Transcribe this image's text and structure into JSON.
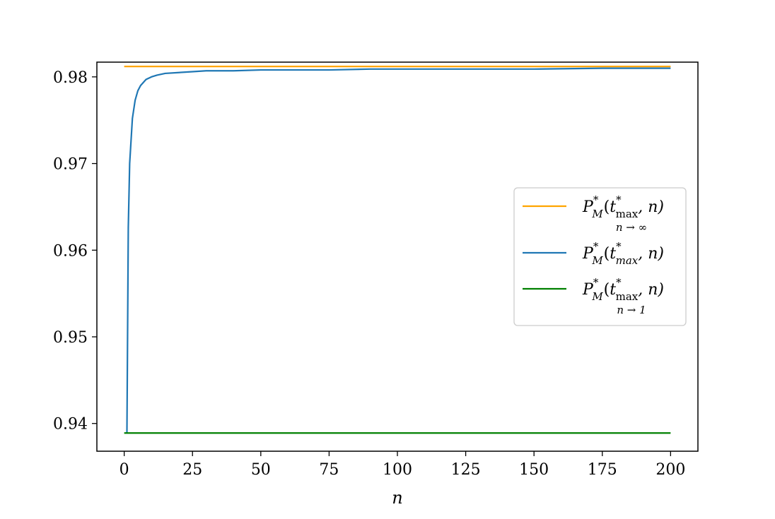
{
  "chart_data": {
    "type": "line",
    "title": "",
    "xlabel": "n",
    "ylabel": "",
    "xlim": [
      -10,
      210
    ],
    "ylim": [
      0.9368,
      0.9817
    ],
    "xticks": [
      0,
      25,
      50,
      75,
      100,
      125,
      150,
      175,
      200
    ],
    "yticks": [
      0.94,
      0.95,
      0.96,
      0.97,
      0.98
    ],
    "xtick_labels": [
      "0",
      "25",
      "50",
      "75",
      "100",
      "125",
      "150",
      "175",
      "200"
    ],
    "ytick_labels": [
      "0.94",
      "0.95",
      "0.96",
      "0.97",
      "0.98"
    ],
    "grid": false,
    "legend_position": "center-right",
    "series": [
      {
        "key": "limit_inf",
        "color": "#ffa500",
        "legend": {
          "main": "P",
          "sub": "M",
          "sup": "*",
          "paren_open": "(",
          "arg": "t",
          "arg_sup": "*",
          "arg_sub": "max",
          "comma_n": ", n)",
          "under": "n → ∞"
        },
        "x": [
          0,
          200
        ],
        "y": [
          0.9812,
          0.9812
        ]
      },
      {
        "key": "exact",
        "color": "#1f77b4",
        "legend": {
          "main": "P",
          "sub": "M",
          "sup": "*",
          "paren_open": "(",
          "arg": "t",
          "arg_sup": "*",
          "arg_sub": "max",
          "comma_n": ", n)",
          "under": ""
        },
        "x": [
          1,
          1.5,
          2,
          3,
          4,
          5,
          6,
          8,
          10,
          12,
          15,
          20,
          25,
          30,
          40,
          50,
          60,
          75,
          90,
          100,
          125,
          150,
          175,
          200
        ],
        "y": [
          0.9389,
          0.9626,
          0.97,
          0.9752,
          0.9773,
          0.9784,
          0.979,
          0.9797,
          0.98,
          0.9802,
          0.9804,
          0.9805,
          0.9806,
          0.9807,
          0.9807,
          0.9808,
          0.9808,
          0.9808,
          0.9809,
          0.9809,
          0.9809,
          0.9809,
          0.981,
          0.981
        ]
      },
      {
        "key": "limit_one",
        "color": "#008000",
        "legend": {
          "main": "P",
          "sub": "M",
          "sup": "*",
          "paren_open": "(",
          "arg": "t",
          "arg_sup": "*",
          "arg_sub": "max",
          "comma_n": ", n)",
          "under": "n → 1"
        },
        "x": [
          0,
          200
        ],
        "y": [
          0.9389,
          0.9389
        ]
      }
    ]
  }
}
